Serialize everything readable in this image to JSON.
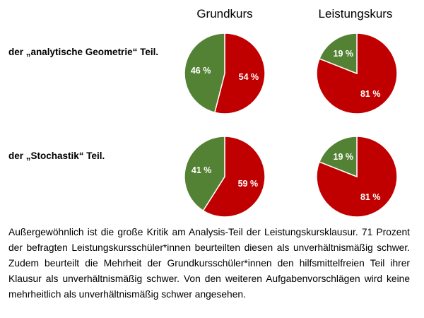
{
  "columns": {
    "grundkurs": "Grundkurs",
    "leistungskurs": "Leistungskurs"
  },
  "rows": [
    {
      "label": "der „analytische Geometrie“ Teil."
    },
    {
      "label": "der „Stochastik“ Teil."
    }
  ],
  "colors": {
    "red": "#c00000",
    "green": "#548235"
  },
  "chart_data": [
    {
      "type": "pie",
      "row": "der „analytische Geometrie“ Teil.",
      "column": "Grundkurs",
      "slices": [
        {
          "value": 54,
          "label": "54 %",
          "color": "#c00000"
        },
        {
          "value": 46,
          "label": "46 %",
          "color": "#548235"
        }
      ]
    },
    {
      "type": "pie",
      "row": "der „analytische Geometrie“ Teil.",
      "column": "Leistungskurs",
      "slices": [
        {
          "value": 81,
          "label": "81 %",
          "color": "#c00000"
        },
        {
          "value": 19,
          "label": "19 %",
          "color": "#548235"
        }
      ]
    },
    {
      "type": "pie",
      "row": "der „Stochastik“ Teil.",
      "column": "Grundkurs",
      "slices": [
        {
          "value": 59,
          "label": "59 %",
          "color": "#c00000"
        },
        {
          "value": 41,
          "label": "41 %",
          "color": "#548235"
        }
      ]
    },
    {
      "type": "pie",
      "row": "der „Stochastik“ Teil.",
      "column": "Leistungskurs",
      "slices": [
        {
          "value": 81,
          "label": "81 %",
          "color": "#c00000"
        },
        {
          "value": 19,
          "label": "19 %",
          "color": "#548235"
        }
      ]
    }
  ],
  "caption": "Außergewöhnlich ist die große Kritik am Analysis-Teil der Leistungskursklausur. 71 Prozent der befragten Leistungskursschüler*innen beurteilten diesen als unverhältnismäßig schwer. Zudem beurteilt die Mehrheit der Grundkursschüler*innen den hilfsmittelfreien Teil ihrer Klausur als unverhältnismäßig schwer. Von den weiteren Aufgabenvorschlägen wird keine mehrheitlich als unverhältnismäßig schwer angesehen."
}
